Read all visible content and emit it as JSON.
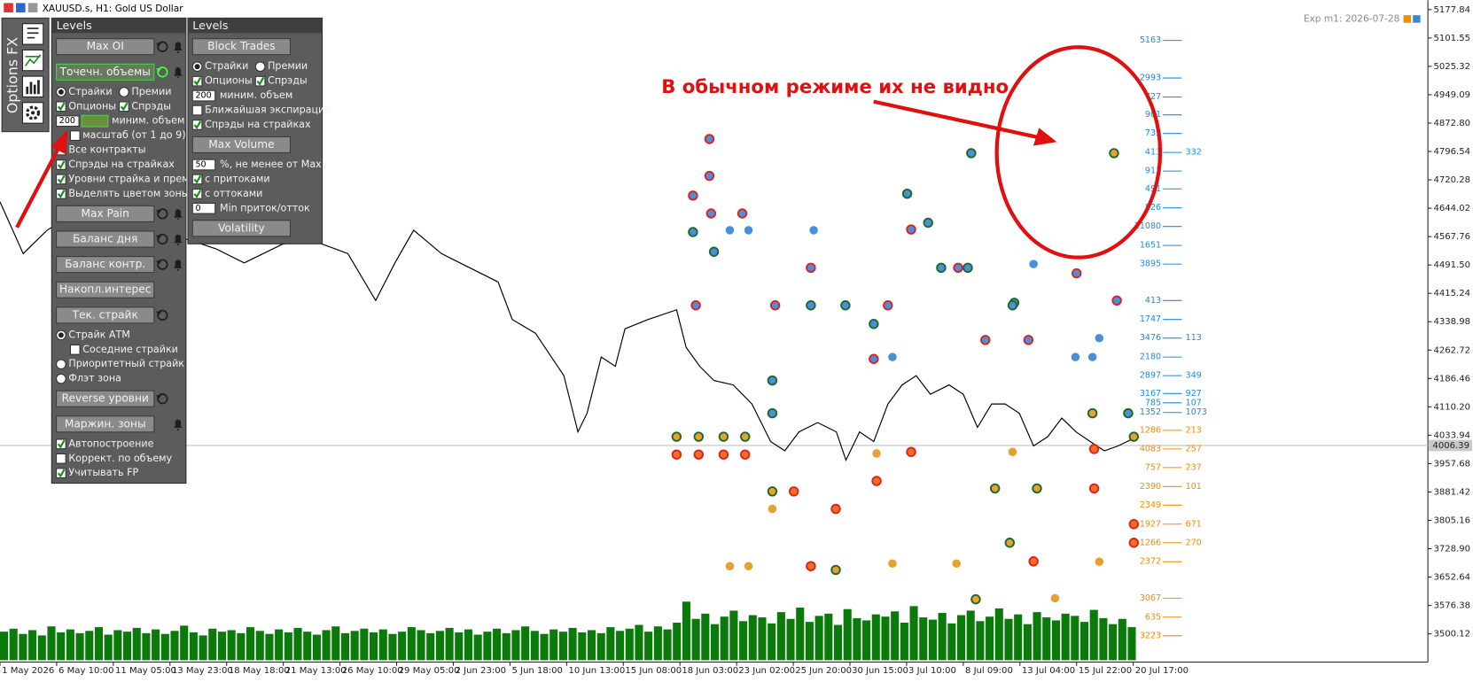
{
  "window_title": "XAUUSD.s, H1: Gold US Dollar",
  "expiry_label": "Exp m1: 2026-07-28",
  "annotation": "В обычном режиме их не видно",
  "sidebar_title": "Options FX",
  "panel_left": {
    "title": "Levels",
    "items": [
      {
        "type": "button",
        "label": "Max OI",
        "reset": true,
        "bell": true
      },
      {
        "type": "button",
        "label": "Точечн. объемы",
        "active": true,
        "reset": true,
        "bell": true
      },
      {
        "type": "options",
        "items": [
          {
            "type": "radio",
            "label": "Страйки",
            "checked": true
          },
          {
            "type": "radio",
            "label": "Премии",
            "checked": false
          }
        ]
      },
      {
        "type": "options",
        "items": [
          {
            "type": "check",
            "label": "Опционы",
            "checked": true
          },
          {
            "type": "check",
            "label": "Спрэды",
            "checked": true
          }
        ]
      },
      {
        "type": "input",
        "value": 200,
        "label": "миним. объем",
        "button": true
      },
      {
        "type": "check",
        "label": "масштаб (от 1 до 9)",
        "checked": false,
        "indent": true
      },
      {
        "type": "check",
        "label": "Все контракты",
        "checked": false
      },
      {
        "type": "check",
        "label": "Спрэды на страйках",
        "checked": true
      },
      {
        "type": "check",
        "label": "Уровни страйка и прем.",
        "checked": true
      },
      {
        "type": "check",
        "label": "Выделять цветом зоны",
        "checked": true
      },
      {
        "type": "button",
        "label": "Max Pain",
        "reset": true,
        "bell": true
      },
      {
        "type": "button",
        "label": "Баланс дня",
        "reset": true,
        "bell": true
      },
      {
        "type": "button",
        "label": "Баланс контр.",
        "reset": true,
        "bell": true
      },
      {
        "type": "button",
        "label": "Накопл.интерес"
      },
      {
        "type": "button",
        "label": "Тек. страйк",
        "reset": true
      },
      {
        "type": "radio",
        "label": "Страйк АТМ",
        "checked": true
      },
      {
        "type": "check",
        "label": "Соседние страйки",
        "checked": false,
        "indent": true
      },
      {
        "type": "radio",
        "label": "Приоритетный страйк",
        "checked": false
      },
      {
        "type": "radio",
        "label": "Флэт зона",
        "checked": false
      },
      {
        "type": "button",
        "label": "Reverse уровни",
        "reset": true
      },
      {
        "type": "button",
        "label": "Маржин. зоны",
        "bell": true
      },
      {
        "type": "check",
        "label": "Автопостроение",
        "checked": true
      },
      {
        "type": "check",
        "label": "Коррект. по объему",
        "checked": false
      },
      {
        "type": "check",
        "label": "Учитывать FP",
        "checked": true
      }
    ]
  },
  "panel_right": {
    "title": "Levels",
    "items": [
      {
        "type": "button",
        "label": "Block Trades"
      },
      {
        "type": "options",
        "items": [
          {
            "type": "radio",
            "label": "Страйки",
            "checked": true
          },
          {
            "type": "radio",
            "label": "Премии",
            "checked": false
          }
        ]
      },
      {
        "type": "options",
        "items": [
          {
            "type": "check",
            "label": "Опционы",
            "checked": true
          },
          {
            "type": "check",
            "label": "Спрэды",
            "checked": true
          }
        ]
      },
      {
        "type": "input",
        "value": 200,
        "label": "миним. объем"
      },
      {
        "type": "check",
        "label": "Ближайшая экспирация",
        "checked": false
      },
      {
        "type": "check",
        "label": "Спрэды на страйках",
        "checked": true
      },
      {
        "type": "button",
        "label": "Max Volume"
      },
      {
        "type": "input",
        "value": 50,
        "label": "%, не менее от Max"
      },
      {
        "type": "check",
        "label": "с притоками",
        "checked": true
      },
      {
        "type": "check",
        "label": "с оттоками",
        "checked": true
      },
      {
        "type": "input",
        "value": 0,
        "label": "Min приток/отток"
      },
      {
        "type": "button",
        "label": "Volatility"
      }
    ]
  },
  "chart_data": [
    {
      "type": "line",
      "grid": false,
      "color": "#000000",
      "xlim": [
        0,
        25.2
      ],
      "ylim": [
        3429.3,
        5203.1
      ],
      "xticks": [
        {
          "value": 0,
          "label": "1 May 2026"
        },
        {
          "value": 1,
          "label": "6 May 10:00"
        },
        {
          "value": 2,
          "label": "11 May 05:00"
        },
        {
          "value": 3,
          "label": "13 May 23:00"
        },
        {
          "value": 4,
          "label": "18 May 18:00"
        },
        {
          "value": 5,
          "label": "21 May 13:00"
        },
        {
          "value": 6,
          "label": "26 May 10:00"
        },
        {
          "value": 7,
          "label": "29 May 05:00"
        },
        {
          "value": 8,
          "label": "2 Jun 23:00"
        },
        {
          "value": 9,
          "label": "5 Jun 18:00"
        },
        {
          "value": 10,
          "label": "10 Jun 13:00"
        },
        {
          "value": 11,
          "label": "15 Jun 08:00"
        },
        {
          "value": 12,
          "label": "18 Jun 03:00"
        },
        {
          "value": 13,
          "label": "23 Jun 02:00"
        },
        {
          "value": 14,
          "label": "25 Jun 20:00"
        },
        {
          "value": 15,
          "label": "30 Jun 15:00"
        },
        {
          "value": 16,
          "label": "3 Jul 10:00"
        },
        {
          "value": 17,
          "label": "8 Jul 09:00"
        },
        {
          "value": 18,
          "label": "13 Jul 04:00"
        },
        {
          "value": 19,
          "label": "15 Jul 22:00"
        },
        {
          "value": 20,
          "label": "20 Jul 17:00"
        }
      ],
      "yticks": [
        5177.84,
        5101.55,
        5025.32,
        4949.09,
        {
          "value": 4872.8,
          "label": "4872.80"
        },
        4796.54,
        4720.28,
        4644.02,
        4567.76,
        {
          "value": 4491.5,
          "label": "4491.50"
        },
        4415.24,
        4338.98,
        4262.72,
        4186.46,
        {
          "value": 4110.2,
          "label": "4110.20"
        },
        4033.94,
        3957.68,
        3881.42,
        3805.16,
        {
          "value": 3728.9,
          "label": "3728.90"
        },
        3652.64,
        3576.38,
        3500.12
      ],
      "current_price": 4006.39,
      "x": [
        0,
        0.41,
        0.83,
        1.24,
        1.66,
        2.49,
        3.32,
        3.81,
        4.31,
        4.98,
        5.47,
        6.14,
        6.63,
        6.97,
        7.3,
        7.79,
        8.29,
        8.79,
        9.04,
        9.45,
        9.95,
        10.2,
        10.36,
        10.61,
        10.86,
        11.03,
        11.44,
        11.94,
        12.11,
        12.35,
        12.6,
        12.94,
        13.27,
        13.6,
        13.85,
        14.1,
        14.43,
        14.76,
        14.93,
        15.17,
        15.42,
        15.67,
        15.92,
        16.17,
        16.42,
        16.75,
        17.0,
        17.25,
        17.5,
        17.74,
        17.99,
        18.24,
        18.49,
        18.74,
        18.99,
        19.24,
        19.49,
        19.73,
        20.07
      ],
      "series": [
        {
          "values": [
            4661,
            4522,
            4585,
            4623,
            4598,
            4572,
            4560,
            4535,
            4497,
            4547,
            4560,
            4522,
            4396,
            4497,
            4585,
            4522,
            4484,
            4446,
            4345,
            4308,
            4194,
            4043,
            4093,
            4244,
            4219,
            4320,
            4345,
            4371,
            4270,
            4219,
            4181,
            4169,
            4118,
            4017,
            3992,
            4043,
            4068,
            4043,
            3967,
            4043,
            4017,
            4118,
            4169,
            4194,
            4144,
            4169,
            4144,
            4055,
            4118,
            4118,
            4093,
            4005,
            4030,
            4080,
            4043,
            4017,
            3992,
            4005,
            4030
          ]
        }
      ],
      "levels": [
        {
          "value": 5163,
          "price": 5095,
          "color": "#1e88e5"
        },
        {
          "value": 2993,
          "price": 4994,
          "color": "#1e88e5"
        },
        {
          "value": 727,
          "price": 4943,
          "color": "#1e88e5"
        },
        {
          "value": 901,
          "price": 4895,
          "color": "#1e88e5"
        },
        {
          "value": 735,
          "price": 4845,
          "color": "#1e88e5"
        },
        {
          "value": 413,
          "extra": 332,
          "price": 4794,
          "color": "#1e88e5"
        },
        {
          "value": 913,
          "price": 4744,
          "color": "#1e88e5"
        },
        {
          "value": 491,
          "price": 4696,
          "color": "#1e88e5"
        },
        {
          "value": 826,
          "price": 4645,
          "color": "#1e88e5"
        },
        {
          "value": 21080,
          "price": 4595,
          "color": "#1e88e5"
        },
        {
          "value": 1651,
          "price": 4544,
          "color": "#1e88e5"
        },
        {
          "value": 3895,
          "price": 4494,
          "color": "#1e88e5"
        },
        {
          "value": 413,
          "price": 4396,
          "color": "#1e88e5"
        },
        {
          "value": 1747,
          "price": 4345,
          "color": "#1e88e5"
        },
        {
          "value": 3476,
          "extra": 113,
          "price": 4295,
          "color": "#1e88e5"
        },
        {
          "value": 2180,
          "price": 4244,
          "color": "#1e88e5"
        },
        {
          "value": 2897,
          "extra": 349,
          "price": 4194,
          "color": "#1e88e5"
        },
        {
          "value": 3167,
          "extra": 927,
          "price": 4146,
          "color": "#1e88e5"
        },
        {
          "value": 785,
          "extra": 107,
          "price": 4121,
          "color": "#1e88e5"
        },
        {
          "value": 1352,
          "extra": 1073,
          "price": 4095,
          "color": "#1e88e5"
        },
        {
          "value": 1286,
          "extra": 213,
          "price": 4047,
          "color": "#f08c00"
        },
        {
          "value": 4083,
          "extra": 257,
          "price": 3997,
          "color": "#f08c00"
        },
        {
          "value": 757,
          "extra": 237,
          "price": 3947,
          "color": "#f08c00"
        },
        {
          "value": 2390,
          "extra": 101,
          "price": 3896,
          "color": "#f08c00"
        },
        {
          "value": 2349,
          "price": 3846,
          "color": "#f08c00"
        },
        {
          "value": 1927,
          "extra": 671,
          "price": 3795,
          "color": "#f08c00"
        },
        {
          "value": 1266,
          "extra": 270,
          "price": 3745,
          "color": "#f08c00"
        },
        {
          "value": 2372,
          "price": 3694,
          "color": "#f08c00"
        },
        {
          "value": 3067,
          "price": 3596,
          "color": "#f08c00"
        },
        {
          "value": 635,
          "price": 3545,
          "color": "#f08c00"
        },
        {
          "value": 3223,
          "price": 3495,
          "color": "#f08c00"
        }
      ]
    },
    {
      "type": "scatter",
      "series": [
        {
          "color": "#4a90d9",
          "stroke": "#e02020",
          "x": [
            12.52,
            12.52,
            12.23,
            13.1,
            12.55,
            16.08,
            19.0,
            13.68,
            15.42,
            18.15,
            19.71,
            14.31,
            16.91,
            15.67,
            12.28,
            17.39
          ],
          "y": [
            4830,
            4731,
            4678,
            4630,
            4630,
            4587,
            4469,
            4383,
            4239,
            4290,
            4396,
            4484,
            4484,
            4383,
            4383,
            4290
          ]
        },
        {
          "color": "#4a90d9",
          "stroke": "#1a6b2a",
          "x": [
            12.23,
            12.6,
            14.31,
            17.08,
            16.01,
            17.14,
            16.38,
            13.63,
            15.42,
            17.9,
            19.91,
            13.63,
            16.61,
            14.92,
            17.87
          ],
          "y": [
            4580,
            4527,
            4383,
            4484,
            4683,
            4792,
            4605,
            4181,
            4333,
            4390,
            4093,
            4093,
            4484,
            4383,
            4383
          ]
        },
        {
          "color": "#e8a030",
          "stroke": "#1a6b2a",
          "x": [
            11.94,
            12.33,
            12.77,
            13.15,
            19.66,
            19.28,
            18.3,
            13.63,
            17.56,
            17.82,
            17.22,
            14.75,
            20.01
          ],
          "y": [
            4030,
            4030,
            4030,
            4030,
            4792,
            4093,
            3891,
            3883,
            3891,
            3745,
            3593,
            3672,
            4030
          ]
        },
        {
          "color": "#f07020",
          "stroke": "#e02020",
          "x": [
            11.94,
            12.33,
            12.77,
            13.15,
            16.08,
            19.31,
            19.31,
            15.47,
            20.01,
            20.01,
            18.24,
            14.31,
            14.01,
            14.75
          ],
          "y": [
            3982,
            3982,
            3982,
            3982,
            3989,
            3891,
            3997,
            3911,
            3795,
            3745,
            3695,
            3682,
            3883,
            3836
          ]
        },
        {
          "color": "#4a90d9",
          "stroke": "none",
          "x": [
            12.88,
            13.21,
            14.36,
            19.4,
            19.28,
            18.98,
            15.75,
            18.24
          ],
          "y": [
            4585,
            4585,
            4585,
            4295,
            4244,
            4244,
            4244,
            4494
          ]
        },
        {
          "color": "#e8a030",
          "stroke": "none",
          "x": [
            12.88,
            13.21,
            15.75,
            16.88,
            19.4,
            18.62,
            17.87,
            15.47,
            13.63
          ],
          "y": [
            3682,
            3682,
            3689,
            3689,
            3694,
            3596,
            3989,
            3985,
            3836
          ]
        }
      ]
    },
    {
      "type": "bar",
      "color": "#0a7a0a",
      "ylim": [
        0,
        100
      ],
      "values": [
        38,
        42,
        35,
        40,
        33,
        45,
        37,
        41,
        36,
        39,
        44,
        34,
        40,
        38,
        43,
        36,
        41,
        35,
        39,
        46,
        37,
        33,
        42,
        38,
        40,
        36,
        44,
        39,
        35,
        41,
        37,
        43,
        38,
        34,
        40,
        45,
        36,
        39,
        42,
        37,
        41,
        35,
        38,
        44,
        40,
        36,
        39,
        43,
        37,
        41,
        34,
        38,
        42,
        36,
        40,
        45,
        39,
        35,
        41,
        38,
        43,
        37,
        40,
        36,
        44,
        39,
        42,
        47,
        38,
        45,
        41,
        50,
        78,
        55,
        62,
        48,
        58,
        66,
        52,
        60,
        57,
        49,
        64,
        55,
        70,
        51,
        59,
        62,
        47,
        68,
        56,
        53,
        61,
        58,
        65,
        50,
        72,
        57,
        54,
        63,
        49,
        60,
        66,
        52,
        58,
        69,
        55,
        61,
        48,
        64,
        57,
        53,
        62,
        59,
        51,
        67,
        56,
        48,
        55,
        44
      ]
    }
  ]
}
